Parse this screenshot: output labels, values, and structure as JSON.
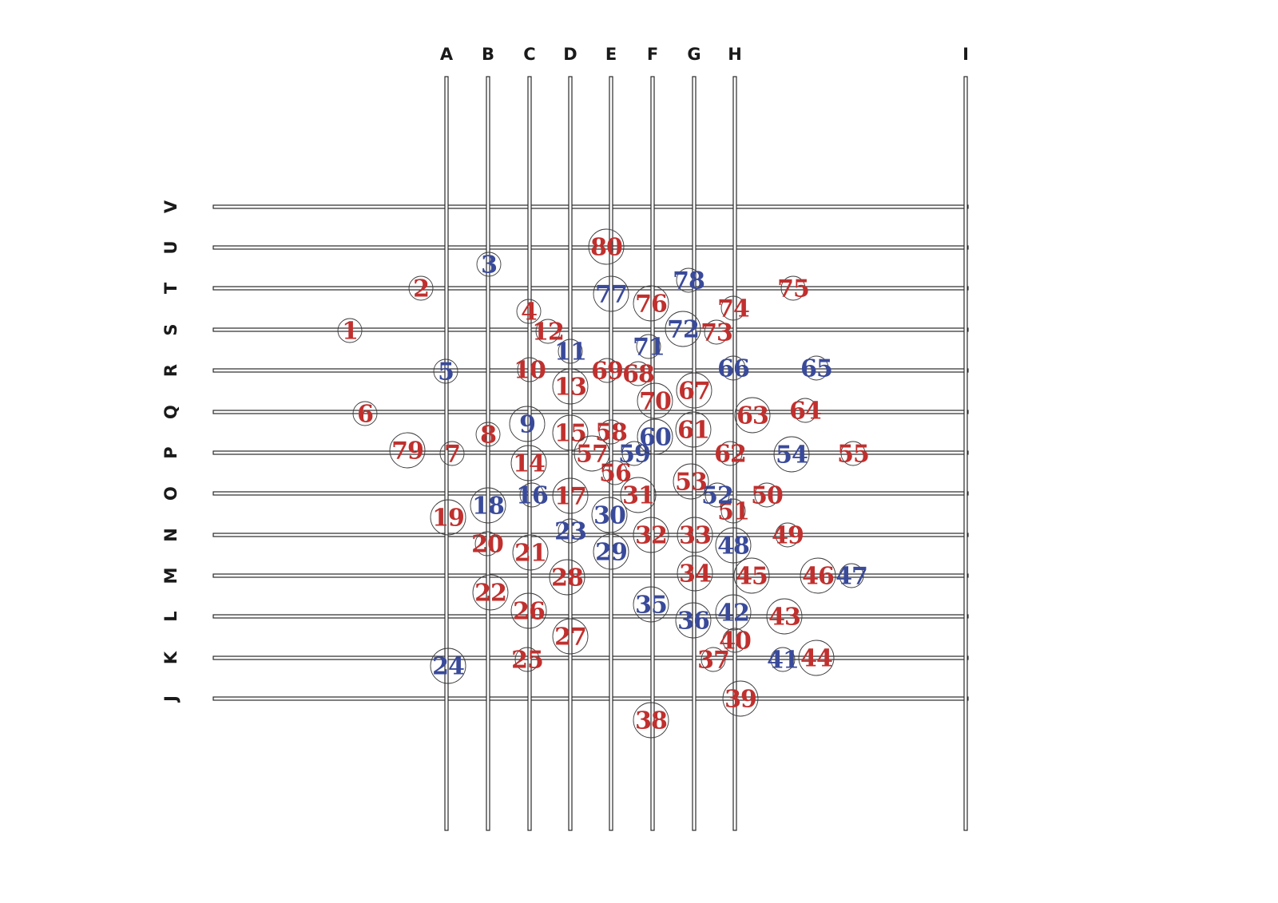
{
  "colors": {
    "red": "#c0302e",
    "blue": "#3a4a9a",
    "line": "#2a2a2a"
  },
  "columns": [
    "A",
    "B",
    "C",
    "D",
    "E",
    "F",
    "G",
    "H",
    "I"
  ],
  "rows": [
    "V",
    "U",
    "T",
    "S",
    "R",
    "Q",
    "P",
    "O",
    "N",
    "M",
    "L",
    "K",
    "J"
  ],
  "markers": [
    {
      "label": "1",
      "color": "red"
    },
    {
      "label": "2",
      "color": "red"
    },
    {
      "label": "3",
      "color": "blue"
    },
    {
      "label": "4",
      "color": "red"
    },
    {
      "label": "5",
      "color": "blue"
    },
    {
      "label": "6",
      "color": "red"
    },
    {
      "label": "7",
      "color": "red"
    },
    {
      "label": "8",
      "color": "red"
    },
    {
      "label": "9",
      "color": "blue"
    },
    {
      "label": "10",
      "color": "red"
    },
    {
      "label": "11",
      "color": "blue"
    },
    {
      "label": "12",
      "color": "red"
    },
    {
      "label": "13",
      "color": "red"
    },
    {
      "label": "14",
      "color": "red"
    },
    {
      "label": "15",
      "color": "red"
    },
    {
      "label": "16",
      "color": "blue"
    },
    {
      "label": "17",
      "color": "red"
    },
    {
      "label": "18",
      "color": "blue"
    },
    {
      "label": "19",
      "color": "red"
    },
    {
      "label": "20",
      "color": "red"
    },
    {
      "label": "21",
      "color": "red"
    },
    {
      "label": "22",
      "color": "red"
    },
    {
      "label": "23",
      "color": "blue"
    },
    {
      "label": "24",
      "color": "blue"
    },
    {
      "label": "25",
      "color": "red"
    },
    {
      "label": "26",
      "color": "red"
    },
    {
      "label": "27",
      "color": "red"
    },
    {
      "label": "28",
      "color": "red"
    },
    {
      "label": "29",
      "color": "blue"
    },
    {
      "label": "30",
      "color": "blue"
    },
    {
      "label": "31",
      "color": "red"
    },
    {
      "label": "32",
      "color": "red"
    },
    {
      "label": "33",
      "color": "red"
    },
    {
      "label": "34",
      "color": "red"
    },
    {
      "label": "35",
      "color": "blue"
    },
    {
      "label": "36",
      "color": "blue"
    },
    {
      "label": "37",
      "color": "red"
    },
    {
      "label": "38",
      "color": "red"
    },
    {
      "label": "39",
      "color": "red"
    },
    {
      "label": "40",
      "color": "red"
    },
    {
      "label": "41",
      "color": "blue"
    },
    {
      "label": "42",
      "color": "blue"
    },
    {
      "label": "43",
      "color": "red"
    },
    {
      "label": "44",
      "color": "red"
    },
    {
      "label": "45",
      "color": "red"
    },
    {
      "label": "46",
      "color": "red"
    },
    {
      "label": "47",
      "color": "blue"
    },
    {
      "label": "48",
      "color": "blue"
    },
    {
      "label": "49",
      "color": "red"
    },
    {
      "label": "50",
      "color": "red"
    },
    {
      "label": "51",
      "color": "red"
    },
    {
      "label": "52",
      "color": "blue"
    },
    {
      "label": "53",
      "color": "red"
    },
    {
      "label": "54",
      "color": "blue"
    },
    {
      "label": "55",
      "color": "red"
    },
    {
      "label": "56",
      "color": "red"
    },
    {
      "label": "57",
      "color": "red"
    },
    {
      "label": "58",
      "color": "red"
    },
    {
      "label": "59",
      "color": "blue"
    },
    {
      "label": "60",
      "color": "blue"
    },
    {
      "label": "61",
      "color": "red"
    },
    {
      "label": "62",
      "color": "red"
    },
    {
      "label": "63",
      "color": "red"
    },
    {
      "label": "64",
      "color": "red"
    },
    {
      "label": "65",
      "color": "blue"
    },
    {
      "label": "66",
      "color": "blue"
    },
    {
      "label": "67",
      "color": "red"
    },
    {
      "label": "68",
      "color": "red"
    },
    {
      "label": "69",
      "color": "red"
    },
    {
      "label": "70",
      "color": "red"
    },
    {
      "label": "71",
      "color": "blue"
    },
    {
      "label": "72",
      "color": "blue"
    },
    {
      "label": "73",
      "color": "red"
    },
    {
      "label": "74",
      "color": "red"
    },
    {
      "label": "75",
      "color": "red"
    },
    {
      "label": "76",
      "color": "red"
    },
    {
      "label": "77",
      "color": "blue"
    },
    {
      "label": "78",
      "color": "blue"
    },
    {
      "label": "79",
      "color": "red"
    },
    {
      "label": "80",
      "color": "red"
    }
  ]
}
